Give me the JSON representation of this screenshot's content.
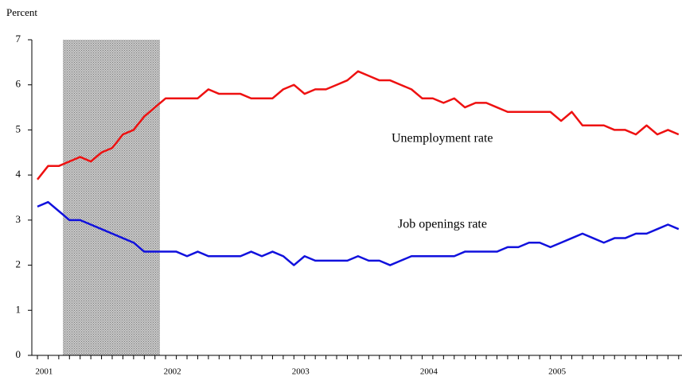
{
  "chart_data": {
    "type": "line",
    "y_label": "Percent",
    "categories": [
      null,
      "2001",
      null,
      null,
      null,
      null,
      null,
      null,
      null,
      null,
      null,
      null,
      null,
      "2002",
      null,
      null,
      null,
      null,
      null,
      null,
      null,
      null,
      null,
      null,
      null,
      "2003",
      null,
      null,
      null,
      null,
      null,
      null,
      null,
      null,
      null,
      null,
      null,
      "2004",
      null,
      null,
      null,
      null,
      null,
      null,
      null,
      null,
      null,
      null,
      null,
      "2005",
      null,
      null,
      null,
      null,
      null,
      null,
      null,
      null,
      null,
      null,
      null
    ],
    "series": [
      {
        "name": "Unemployment rate",
        "color": "#ee1111",
        "values": [
          3.9,
          4.2,
          4.2,
          4.3,
          4.4,
          4.3,
          4.5,
          4.6,
          4.9,
          5.0,
          5.3,
          5.5,
          5.7,
          5.7,
          5.7,
          5.7,
          5.9,
          5.8,
          5.8,
          5.8,
          5.7,
          5.7,
          5.7,
          5.9,
          6.0,
          5.8,
          5.9,
          5.9,
          6.0,
          6.1,
          6.3,
          6.2,
          6.1,
          6.1,
          6.0,
          5.9,
          5.7,
          5.7,
          5.6,
          5.7,
          5.5,
          5.6,
          5.6,
          5.5,
          5.4,
          5.4,
          5.4,
          5.4,
          5.4,
          5.2,
          5.4,
          5.1,
          5.1,
          5.1,
          5.0,
          5.0,
          4.9,
          5.1,
          4.9,
          5.0,
          4.9
        ]
      },
      {
        "name": "Job openings rate",
        "color": "#1111dd",
        "values": [
          3.3,
          3.4,
          3.2,
          3.0,
          3.0,
          2.9,
          2.8,
          2.7,
          2.6,
          2.5,
          2.3,
          2.3,
          2.3,
          2.3,
          2.2,
          2.3,
          2.2,
          2.2,
          2.2,
          2.2,
          2.3,
          2.2,
          2.3,
          2.2,
          2.0,
          2.2,
          2.1,
          2.1,
          2.1,
          2.1,
          2.2,
          2.1,
          2.1,
          2.0,
          2.1,
          2.2,
          2.2,
          2.2,
          2.2,
          2.2,
          2.3,
          2.3,
          2.3,
          2.3,
          2.4,
          2.4,
          2.5,
          2.5,
          2.4,
          2.5,
          2.6,
          2.7,
          2.6,
          2.5,
          2.6,
          2.6,
          2.7,
          2.7,
          2.8,
          2.9,
          2.8
        ]
      }
    ],
    "ylim": [
      0,
      7
    ],
    "yticks": [
      0,
      1,
      2,
      3,
      4,
      5,
      6,
      7
    ],
    "grid": false
  }
}
